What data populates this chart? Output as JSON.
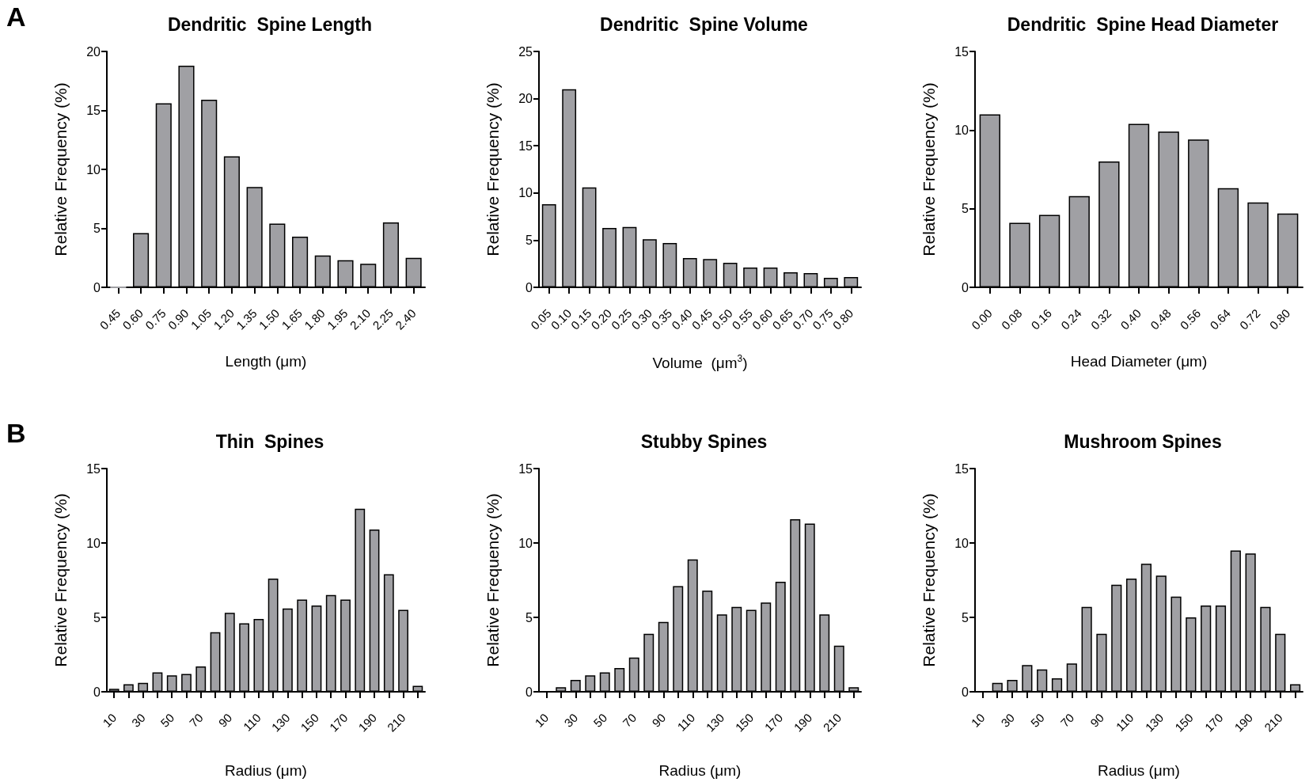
{
  "chart_data": [
    {
      "type": "bar",
      "title": "Dendritic  Spine Length",
      "xlabel": "Length (μm)",
      "ylabel": "Relative Frequency (%)",
      "annotations": [
        "A"
      ],
      "color": "#a0a0a4",
      "ylim": [
        0,
        20
      ],
      "yticks": [
        0,
        5,
        10,
        15,
        20
      ],
      "categories": [
        "0.45",
        "0.60",
        "0.75",
        "0.90",
        "1.05",
        "1.20",
        "1.35",
        "1.50",
        "1.65",
        "1.80",
        "1.95",
        "2.10",
        "2.25",
        "2.40"
      ],
      "values": [
        0,
        4.6,
        15.6,
        18.8,
        15.9,
        11.1,
        8.5,
        5.4,
        4.3,
        2.7,
        2.3,
        2.0,
        5.5,
        2.5
      ]
    },
    {
      "type": "bar",
      "title": "Dendritic  Spine Volume",
      "xlabel": "Volume  (μm$^{3}$)",
      "ylabel": "Relative Frequency (%)",
      "color": "#a0a0a4",
      "ylim": [
        0,
        25
      ],
      "yticks": [
        0,
        5,
        10,
        15,
        20,
        25
      ],
      "categories": [
        "0.05",
        "0.10",
        "0.15",
        "0.20",
        "0.25",
        "0.30",
        "0.35",
        "0.40",
        "0.45",
        "0.50",
        "0.55",
        "0.60",
        "0.65",
        "0.70",
        "0.75",
        "0.80"
      ],
      "values": [
        8.8,
        21.0,
        10.6,
        6.3,
        6.4,
        5.1,
        4.7,
        3.1,
        3.0,
        2.6,
        2.1,
        2.1,
        1.6,
        1.5,
        1.0,
        1.1
      ]
    },
    {
      "type": "bar",
      "title": "Dendritic  Spine Head Diameter",
      "xlabel": "Head Diameter (μm)",
      "ylabel": "Relative Frequency (%)",
      "color": "#a0a0a4",
      "ylim": [
        0,
        15
      ],
      "yticks": [
        0,
        5,
        10,
        15
      ],
      "categories": [
        "0.00",
        "0.08",
        "0.16",
        "0.24",
        "0.32",
        "0.40",
        "0.48",
        "0.56",
        "0.64",
        "0.72",
        "0.80"
      ],
      "values": [
        11.0,
        4.1,
        4.6,
        5.8,
        8.0,
        10.4,
        9.9,
        9.4,
        6.3,
        5.4,
        4.7
      ]
    },
    {
      "type": "bar",
      "title": "Thin  Spines",
      "xlabel": "Radius (μm)",
      "ylabel": "Relative Frequency (%)",
      "annotations": [
        "B"
      ],
      "color": "#a0a0a4",
      "ylim": [
        0,
        15
      ],
      "yticks": [
        0,
        5,
        10,
        15
      ],
      "categories": [
        "10",
        null,
        "30",
        null,
        "50",
        null,
        "70",
        null,
        "90",
        null,
        "110",
        null,
        "130",
        null,
        "150",
        null,
        "170",
        null,
        "190",
        null,
        "210",
        null
      ],
      "values": [
        0.2,
        0.5,
        0.6,
        1.3,
        1.1,
        1.2,
        1.7,
        4.0,
        5.3,
        4.6,
        4.9,
        7.6,
        5.6,
        6.2,
        5.8,
        6.5,
        6.2,
        12.3,
        10.9,
        7.9,
        5.5,
        0.4
      ]
    },
    {
      "type": "bar",
      "title": "Stubby Spines",
      "xlabel": "Radius (μm)",
      "ylabel": "Relative Frequency (%)",
      "color": "#a0a0a4",
      "ylim": [
        0,
        15
      ],
      "yticks": [
        0,
        5,
        10,
        15
      ],
      "categories": [
        "10",
        null,
        "30",
        null,
        "50",
        null,
        "70",
        null,
        "90",
        null,
        "110",
        null,
        "130",
        null,
        "150",
        null,
        "170",
        null,
        "190",
        null,
        "210",
        null
      ],
      "values": [
        null,
        0.3,
        0.8,
        1.1,
        1.3,
        1.6,
        2.3,
        3.9,
        4.7,
        7.1,
        8.9,
        6.8,
        5.2,
        5.7,
        5.5,
        6.0,
        7.4,
        11.6,
        11.3,
        5.2,
        3.1,
        0.3
      ]
    },
    {
      "type": "bar",
      "title": "Mushroom Spines",
      "xlabel": "Radius (μm)",
      "ylabel": "Relative Frequency (%)",
      "color": "#a0a0a4",
      "ylim": [
        0,
        15
      ],
      "yticks": [
        0,
        5,
        10,
        15
      ],
      "categories": [
        "10",
        null,
        "30",
        null,
        "50",
        null,
        "70",
        null,
        "90",
        null,
        "110",
        null,
        "130",
        null,
        "150",
        null,
        "170",
        null,
        "190",
        null,
        "210",
        null
      ],
      "values": [
        null,
        0.6,
        0.8,
        1.8,
        1.5,
        0.9,
        1.9,
        5.7,
        3.9,
        7.2,
        7.6,
        8.6,
        7.8,
        6.4,
        5.0,
        5.8,
        5.8,
        9.5,
        9.3,
        5.7,
        3.9,
        0.5
      ]
    }
  ]
}
